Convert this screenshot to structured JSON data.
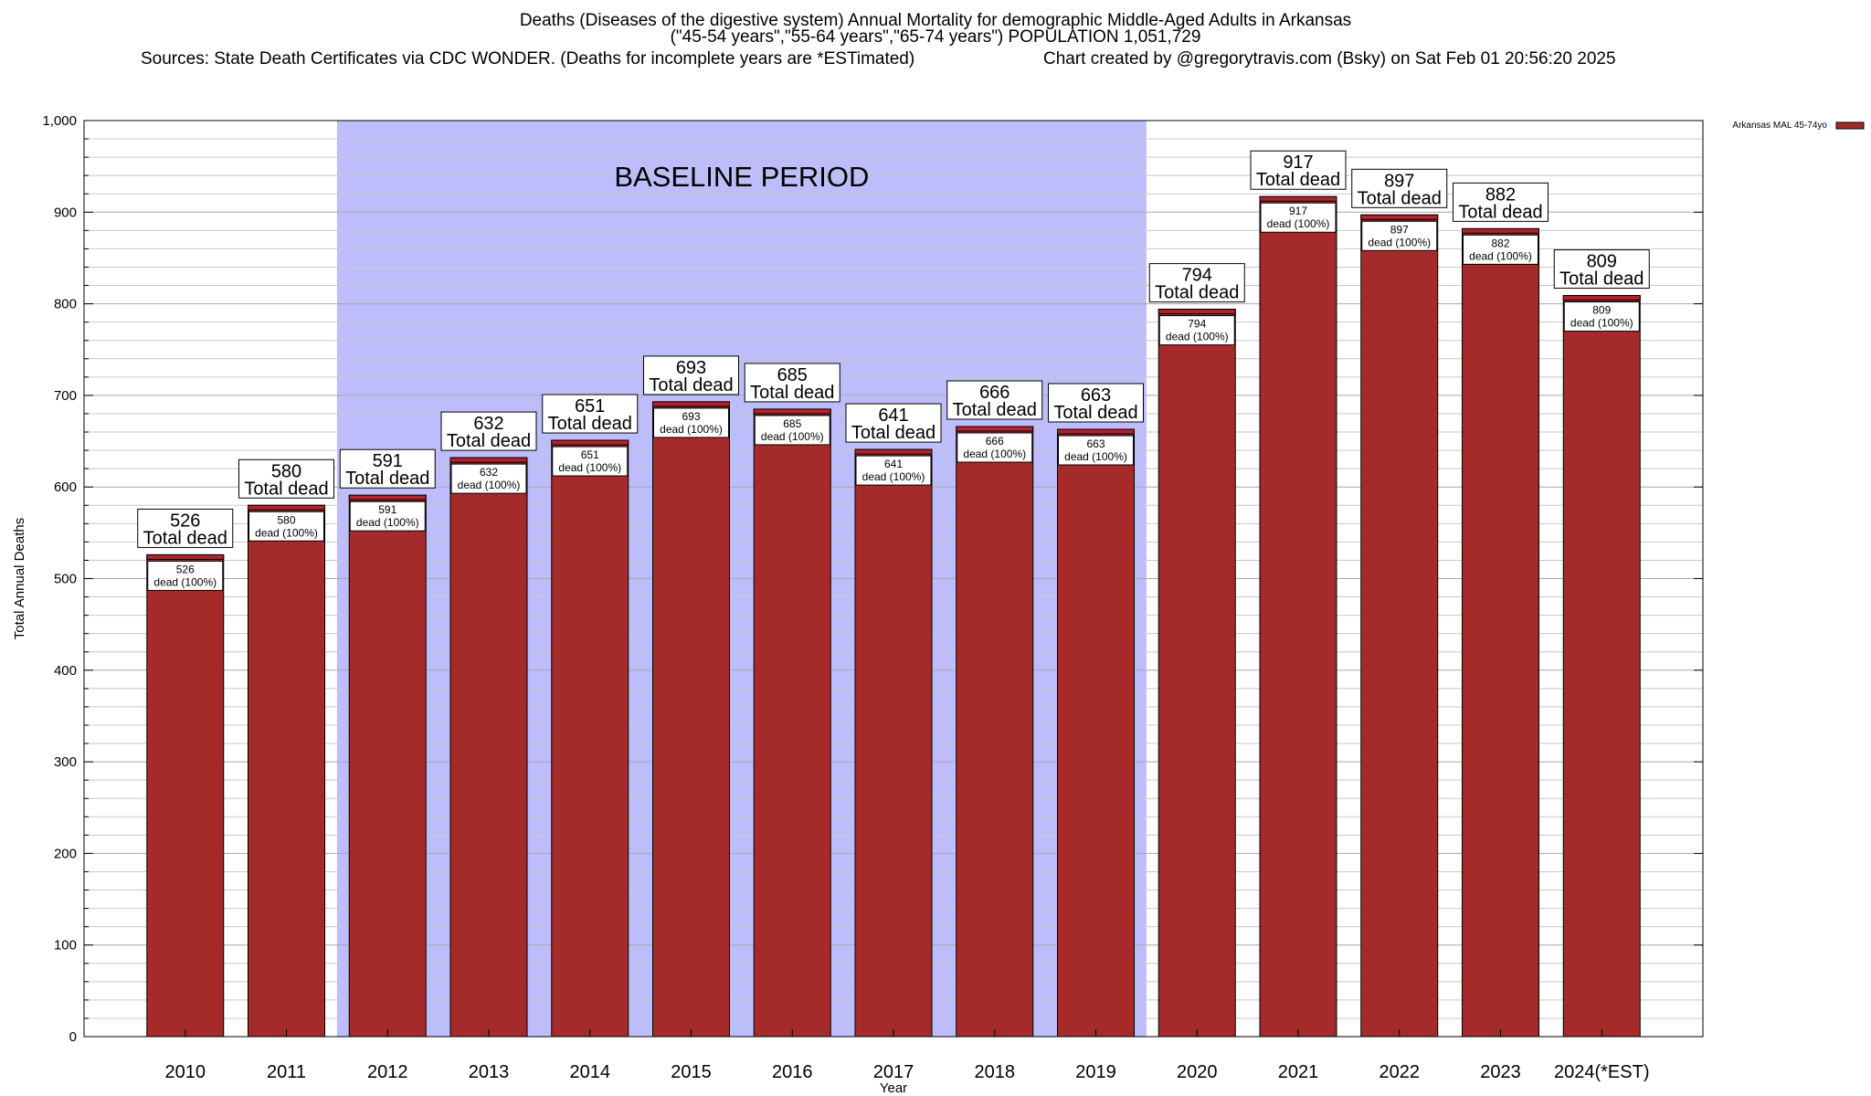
{
  "header": {
    "title_line1": "Deaths (Diseases of the digestive system) Annual Mortality for demographic Middle-Aged Adults in Arkansas",
    "title_line2": "(\"45-54 years\",\"55-64 years\",\"65-74 years\") POPULATION 1,051,729",
    "sources": "Sources: State Death Certificates via CDC WONDER. (Deaths for incomplete years are *ESTimated)",
    "credit": "Chart created by @gregorytravis.com (Bsky) on Sat Feb 01 20:56:20 2025"
  },
  "chart_data": {
    "type": "bar",
    "xlabel": "Year",
    "ylabel": "Total Annual Deaths",
    "ylim": [
      0,
      1000
    ],
    "yticks": [
      "0",
      "100",
      "200",
      "300",
      "400",
      "500",
      "600",
      "700",
      "800",
      "900",
      "1,000"
    ],
    "categories": [
      "2010",
      "2011",
      "2012",
      "2013",
      "2014",
      "2015",
      "2016",
      "2017",
      "2018",
      "2019",
      "2020",
      "2021",
      "2022",
      "2023",
      "2024(*EST)"
    ],
    "series": [
      {
        "name": "Arkansas MAL 45-74yo",
        "values": [
          526,
          580,
          591,
          632,
          651,
          693,
          685,
          641,
          666,
          663,
          794,
          917,
          897,
          882,
          809
        ]
      }
    ],
    "total_label_suffix": "Total dead",
    "inner_label_suffix": "dead (100%)",
    "baseline_period": {
      "label": "BASELINE PERIOD",
      "start": "2012",
      "end": "2019"
    },
    "legend_position": "top-right",
    "grid": "horizontal",
    "colors": {
      "bar": "#a52a2a",
      "bar_cap": "#b3232d",
      "baseline": "#bdbdfc"
    }
  }
}
